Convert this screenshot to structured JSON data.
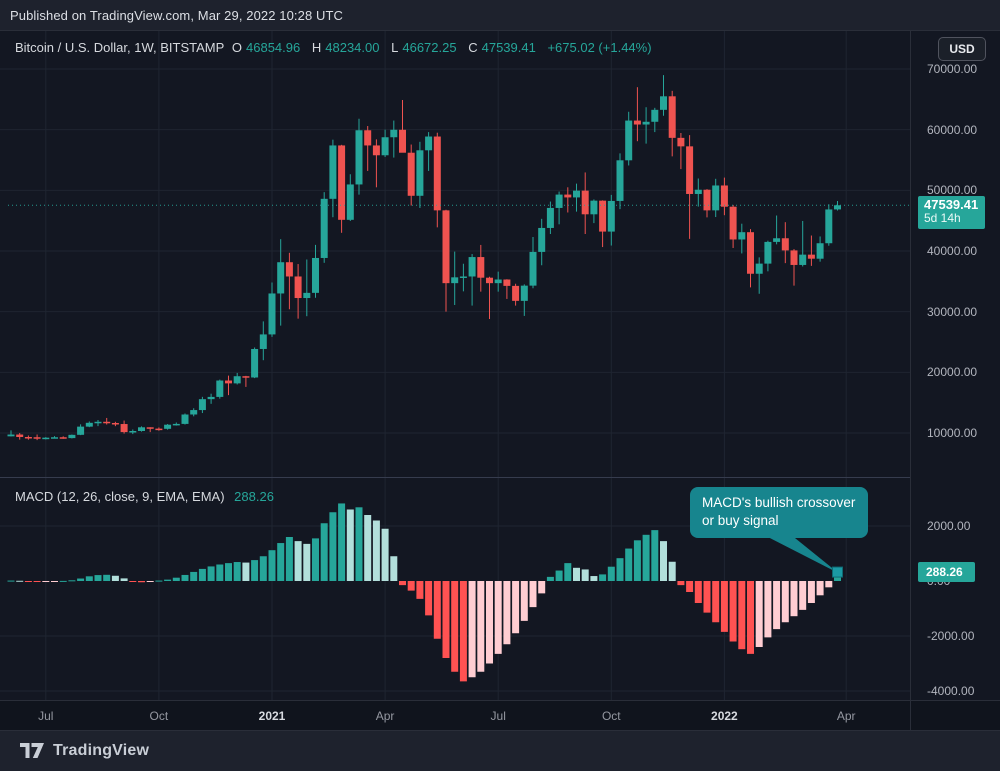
{
  "header": {
    "published": "Published on TradingView.com, Mar 29, 2022 10:28 UTC"
  },
  "legend": {
    "title": "Bitcoin / U.S. Dollar, 1W, BITSTAMP",
    "o_label": "O",
    "o_value": "46854.96",
    "h_label": "H",
    "h_value": "48234.00",
    "l_label": "L",
    "l_value": "46672.25",
    "c_label": "C",
    "c_value": "47539.41",
    "change": "+675.02 (+1.44%)"
  },
  "price_scale": {
    "currency": "USD",
    "ticks": [
      {
        "label": "70000.00",
        "value": 70000
      },
      {
        "label": "60000.00",
        "value": 60000
      },
      {
        "label": "50000.00",
        "value": 50000
      },
      {
        "label": "40000.00",
        "value": 40000
      },
      {
        "label": "30000.00",
        "value": 30000
      },
      {
        "label": "20000.00",
        "value": 20000
      },
      {
        "label": "10000.00",
        "value": 10000
      }
    ],
    "last_price_label": "47539.41",
    "countdown": "5d 14h"
  },
  "macd": {
    "title": "MACD",
    "params": "(12, 26, close, 9, EMA, EMA)",
    "value": "288.26",
    "value_label": "288.26",
    "ticks": [
      {
        "label": "2000.00",
        "value": 2000
      },
      {
        "label": "0.00",
        "value": 0
      },
      {
        "label": "-2000.00",
        "value": -2000
      },
      {
        "label": "-4000.00",
        "value": -4000
      }
    ]
  },
  "callout": {
    "line1": "MACD's bullish crossover",
    "line2": "or buy signal"
  },
  "time_axis": [
    {
      "label": "Jul",
      "week": 4,
      "year": false
    },
    {
      "label": "Oct",
      "week": 17,
      "year": false
    },
    {
      "label": "2021",
      "week": 30,
      "year": true
    },
    {
      "label": "Apr",
      "week": 43,
      "year": false
    },
    {
      "label": "Jul",
      "week": 56,
      "year": false
    },
    {
      "label": "Oct",
      "week": 69,
      "year": false
    },
    {
      "label": "2022",
      "week": 82,
      "year": true
    },
    {
      "label": "Apr",
      "week": 96,
      "year": false
    }
  ],
  "footer": {
    "brand": "TradingView"
  },
  "colors": {
    "up": "#26a69a",
    "down": "#ef5350",
    "hist_pos": "#26a69a",
    "hist_pos_fade": "#b2dfdb",
    "hist_neg": "#ff5252",
    "hist_neg_fade": "#ffcdd2",
    "accent": "#26a69a",
    "callout_bg": "#17858e",
    "grid": "#1f2531",
    "border": "#2a2e39",
    "pane_border": "#363c4e"
  },
  "chart_data": {
    "type": "candlestick",
    "title": "Bitcoin / U.S. Dollar weekly with MACD histogram",
    "interval": "1W",
    "current_price": 47539.41,
    "price_axis_range": [
      4000,
      72500
    ],
    "macd_axis_range": [
      -4400,
      3700
    ],
    "last_macd_value": 288.26,
    "candles": [
      [
        9450,
        10428,
        9421,
        9750
      ],
      [
        9750,
        9996,
        8910,
        9342
      ],
      [
        9342,
        9590,
        8900,
        9300
      ],
      [
        9300,
        9750,
        8830,
        9135
      ],
      [
        9135,
        9320,
        8940,
        9230
      ],
      [
        9230,
        9480,
        9150,
        9300
      ],
      [
        9300,
        9450,
        9050,
        9160
      ],
      [
        9160,
        9750,
        9100,
        9700
      ],
      [
        9700,
        11430,
        9650,
        11050
      ],
      [
        11050,
        11900,
        10960,
        11680
      ],
      [
        11680,
        12150,
        11125,
        11850
      ],
      [
        11850,
        12480,
        11400,
        11650
      ],
      [
        11650,
        11850,
        11130,
        11480
      ],
      [
        11480,
        12050,
        9900,
        10150
      ],
      [
        10150,
        10580,
        9820,
        10330
      ],
      [
        10330,
        11100,
        10220,
        10940
      ],
      [
        10940,
        10950,
        10150,
        10720
      ],
      [
        10720,
        10920,
        10380,
        10690
      ],
      [
        10690,
        11480,
        10550,
        11370
      ],
      [
        11370,
        11730,
        11220,
        11500
      ],
      [
        11500,
        13220,
        11400,
        13050
      ],
      [
        13050,
        14080,
        12750,
        13780
      ],
      [
        13780,
        15960,
        13290,
        15580
      ],
      [
        15580,
        16480,
        14810,
        15950
      ],
      [
        15950,
        18800,
        15660,
        18650
      ],
      [
        18650,
        19450,
        16250,
        18180
      ],
      [
        18180,
        19900,
        18000,
        19360
      ],
      [
        19360,
        19420,
        17600,
        19150
      ],
      [
        19150,
        24100,
        19050,
        23850
      ],
      [
        23850,
        28400,
        22000,
        26250
      ],
      [
        26250,
        34800,
        25850,
        33000
      ],
      [
        33000,
        41950,
        27700,
        38150
      ],
      [
        38150,
        39700,
        30400,
        35800
      ],
      [
        35800,
        37850,
        28850,
        32250
      ],
      [
        32250,
        38600,
        29250,
        33100
      ],
      [
        33100,
        41000,
        32300,
        38850
      ],
      [
        38850,
        49700,
        38050,
        48600
      ],
      [
        48600,
        58350,
        45570,
        57400
      ],
      [
        57400,
        57500,
        43000,
        45140
      ],
      [
        45140,
        52650,
        44950,
        50970
      ],
      [
        50970,
        61800,
        49300,
        59900
      ],
      [
        59900,
        60600,
        53200,
        57400
      ],
      [
        57400,
        58400,
        50500,
        55780
      ],
      [
        55780,
        60000,
        55500,
        58750
      ],
      [
        58750,
        61500,
        55400,
        59980
      ],
      [
        59980,
        64900,
        56250,
        56200
      ],
      [
        56200,
        57550,
        47500,
        49100
      ],
      [
        49100,
        58000,
        47100,
        56600
      ],
      [
        56600,
        59600,
        53200,
        58870
      ],
      [
        58870,
        59500,
        43900,
        46700
      ],
      [
        46700,
        46800,
        30000,
        34700
      ],
      [
        34700,
        39900,
        31100,
        35660
      ],
      [
        35660,
        37900,
        33350,
        35800
      ],
      [
        35800,
        39500,
        31000,
        39000
      ],
      [
        39000,
        41000,
        33300,
        35600
      ],
      [
        35600,
        35750,
        28800,
        34700
      ],
      [
        34700,
        36600,
        33300,
        35300
      ],
      [
        35300,
        35350,
        32100,
        34250
      ],
      [
        34250,
        34600,
        31000,
        31780
      ],
      [
        31780,
        34500,
        29300,
        34290
      ],
      [
        34290,
        42300,
        33850,
        39850
      ],
      [
        39850,
        45300,
        37650,
        43800
      ],
      [
        43800,
        48150,
        42800,
        47100
      ],
      [
        47100,
        49800,
        44400,
        49300
      ],
      [
        49300,
        50500,
        46350,
        48830
      ],
      [
        48830,
        51100,
        46500,
        49950
      ],
      [
        49950,
        52950,
        42800,
        46050
      ],
      [
        46050,
        48500,
        44600,
        48300
      ],
      [
        48300,
        48350,
        40650,
        43200
      ],
      [
        43200,
        49250,
        40900,
        48250
      ],
      [
        48250,
        56100,
        46900,
        54950
      ],
      [
        54950,
        62950,
        54100,
        61500
      ],
      [
        61500,
        67000,
        58100,
        60850
      ],
      [
        60850,
        63700,
        57700,
        61300
      ],
      [
        61300,
        63600,
        59600,
        63270
      ],
      [
        63270,
        69000,
        62300,
        65500
      ],
      [
        65500,
        66400,
        55600,
        58650
      ],
      [
        58650,
        59450,
        53500,
        57250
      ],
      [
        57250,
        59100,
        42000,
        49400
      ],
      [
        49400,
        51950,
        47320,
        50100
      ],
      [
        50100,
        50200,
        45550,
        46700
      ],
      [
        46700,
        51900,
        45600,
        50800
      ],
      [
        50800,
        52100,
        45900,
        47300
      ],
      [
        47300,
        47600,
        40500,
        41900
      ],
      [
        41900,
        44500,
        39600,
        43100
      ],
      [
        43100,
        43600,
        34000,
        36250
      ],
      [
        36250,
        38950,
        32950,
        37920
      ],
      [
        37920,
        41700,
        36650,
        41500
      ],
      [
        41500,
        45850,
        41100,
        42100
      ],
      [
        42100,
        44750,
        38000,
        40100
      ],
      [
        40100,
        40300,
        34300,
        37700
      ],
      [
        37700,
        44950,
        37450,
        39400
      ],
      [
        39400,
        42550,
        37550,
        38730
      ],
      [
        38730,
        42400,
        38240,
        41280
      ],
      [
        41280,
        47700,
        40870,
        46850
      ],
      [
        46854.96,
        48234.0,
        46672.25,
        47539.41
      ]
    ],
    "macd_histogram": [
      15,
      8,
      -8,
      -18,
      -14,
      -6,
      4,
      25,
      90,
      170,
      215,
      225,
      190,
      95,
      -25,
      -45,
      -25,
      15,
      50,
      120,
      220,
      330,
      440,
      530,
      600,
      650,
      690,
      670,
      760,
      900,
      1120,
      1380,
      1600,
      1450,
      1350,
      1550,
      2100,
      2500,
      2820,
      2600,
      2680,
      2400,
      2200,
      1900,
      900,
      -150,
      -350,
      -650,
      -1250,
      -2100,
      -2800,
      -3300,
      -3650,
      -3500,
      -3300,
      -3000,
      -2650,
      -2300,
      -1900,
      -1450,
      -950,
      -450,
      150,
      380,
      650,
      480,
      420,
      180,
      240,
      520,
      830,
      1180,
      1480,
      1680,
      1850,
      1450,
      700,
      -150,
      -400,
      -800,
      -1150,
      -1500,
      -1850,
      -2200,
      -2480,
      -2650,
      -2400,
      -2050,
      -1750,
      -1500,
      -1280,
      -1050,
      -800,
      -520,
      -230,
      288.26
    ]
  }
}
